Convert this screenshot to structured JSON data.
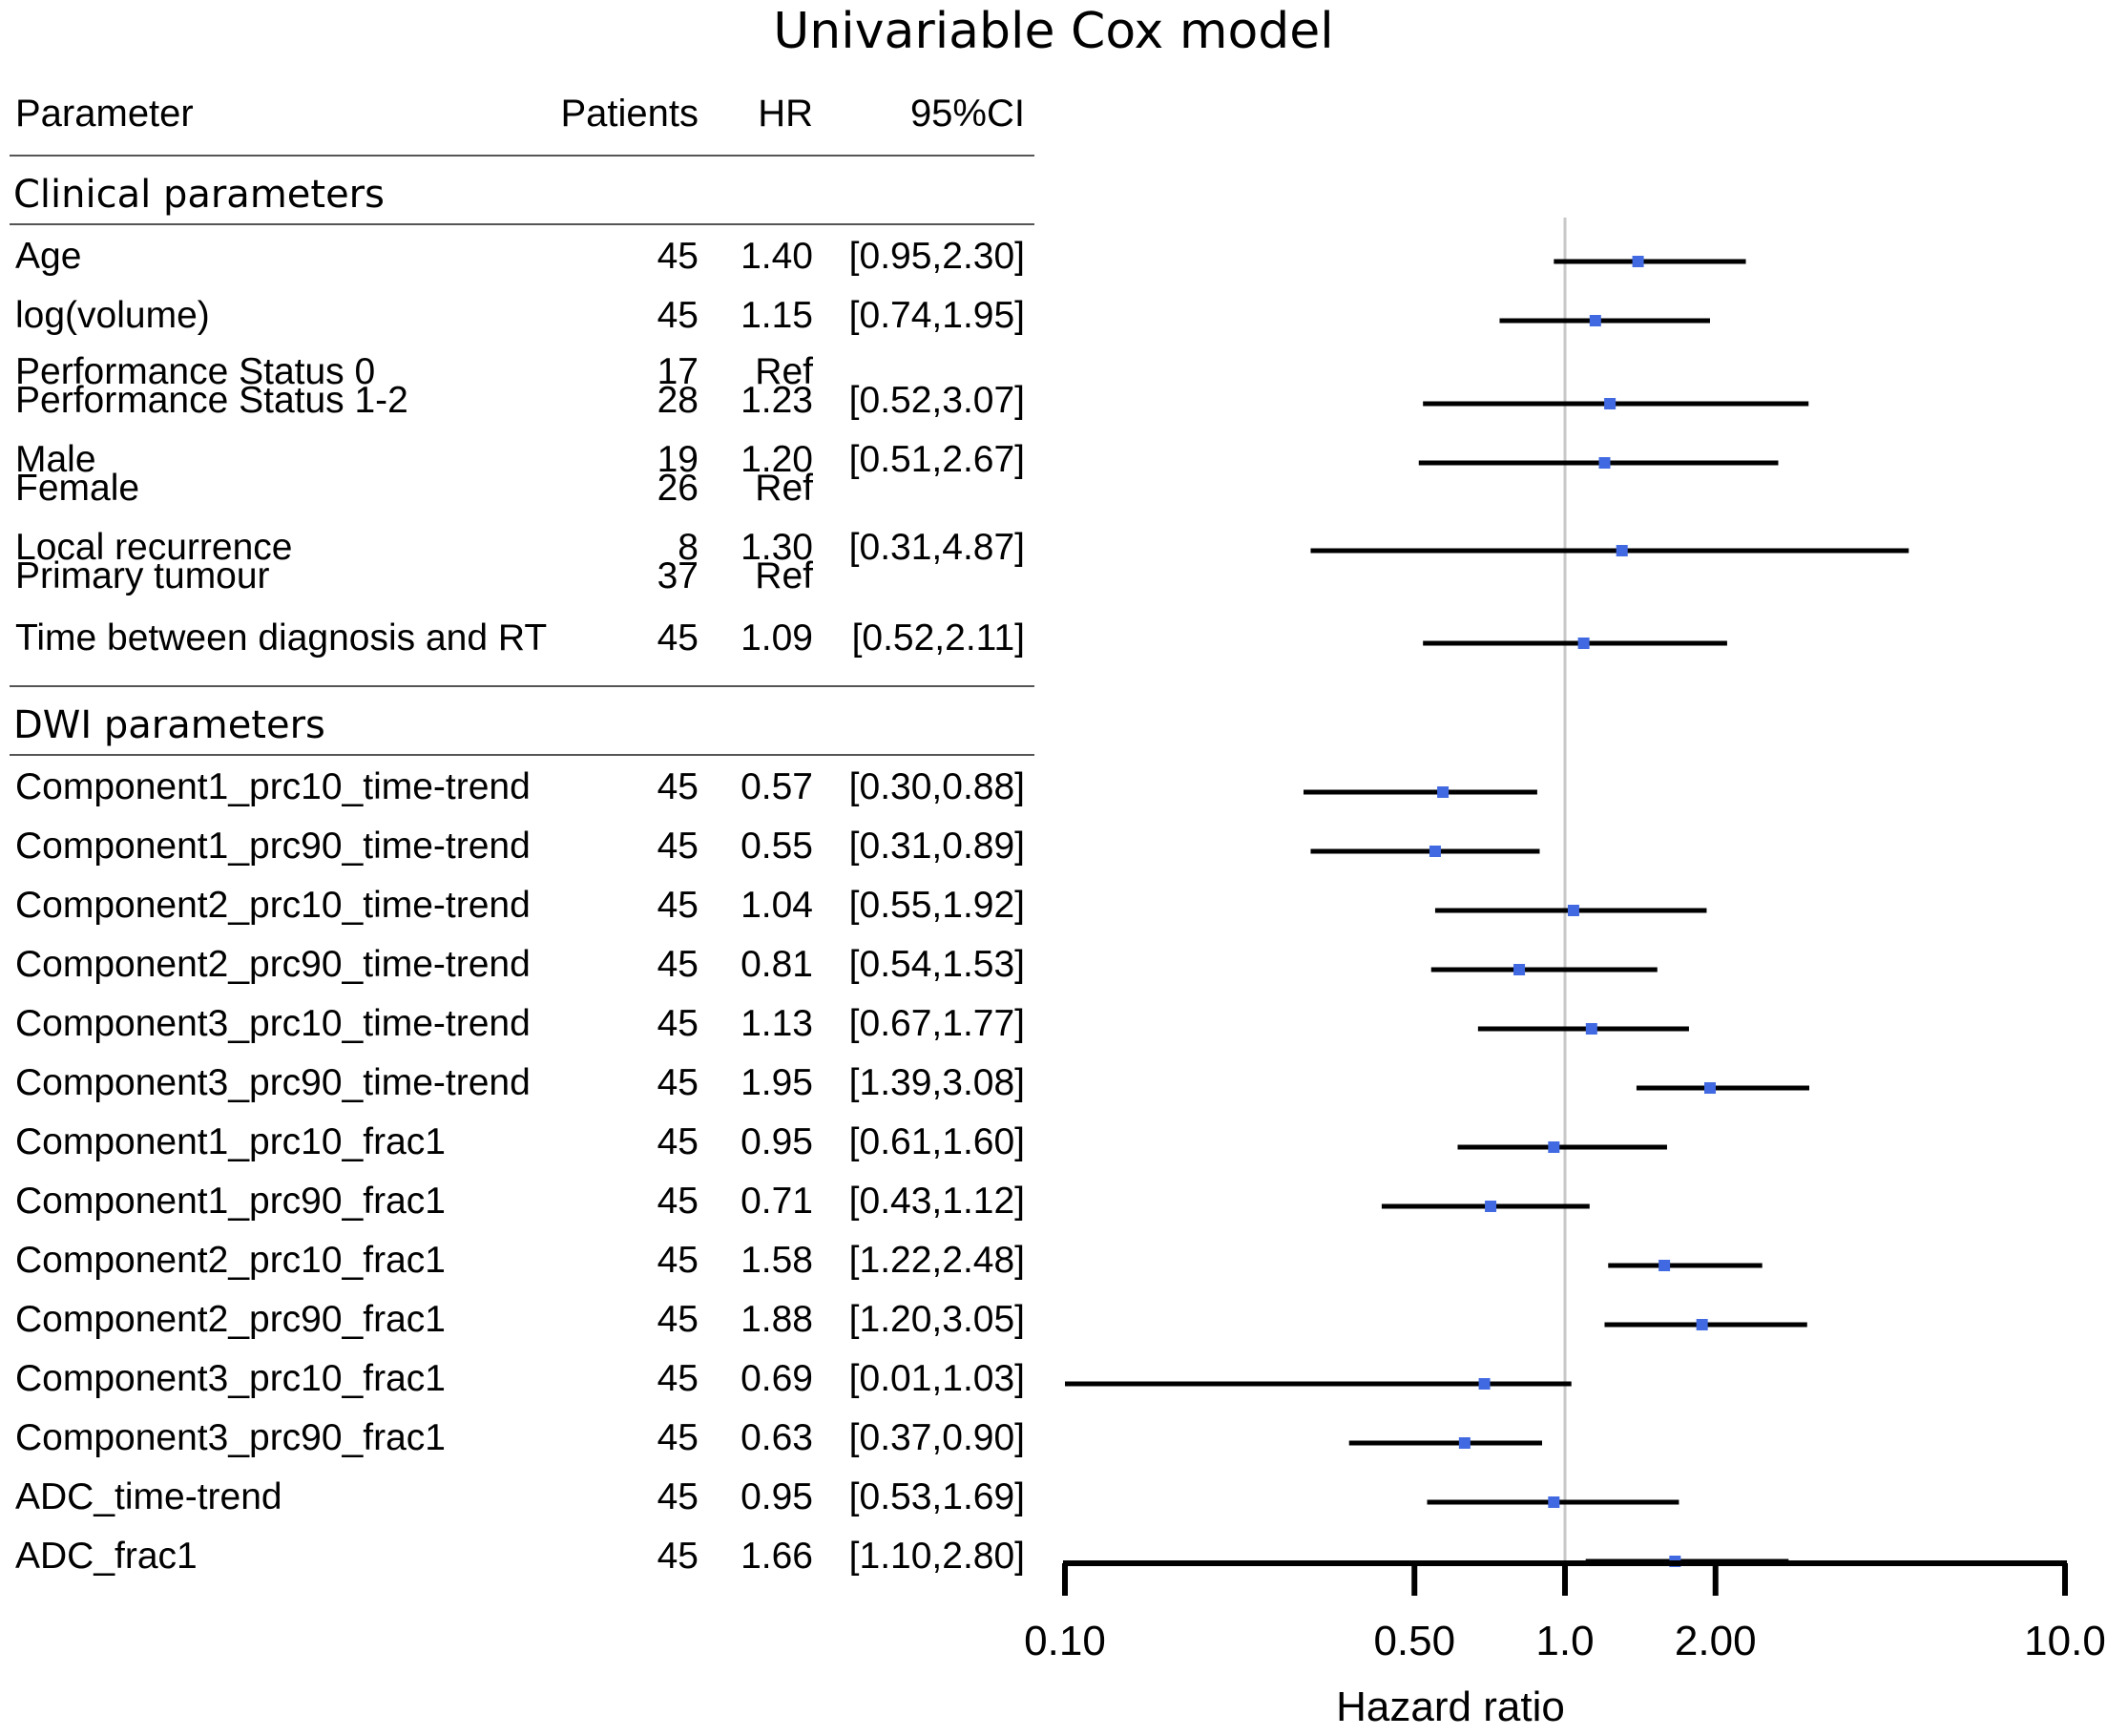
{
  "chart_data": {
    "type": "forest",
    "title": "Univariable Cox model",
    "columns": [
      "Parameter",
      "Patients",
      "HR",
      "95%CI"
    ],
    "xlabel": "Hazard ratio",
    "xscale": "log",
    "xlim": [
      0.1,
      10.0
    ],
    "xticks": [
      "0.10",
      "0.50",
      "1.0",
      "2.00",
      "10.0"
    ],
    "xtick_values": [
      0.1,
      0.5,
      1.0,
      2.0,
      10.0
    ],
    "reference_line": 1.0,
    "colors": {
      "point": "#4169E1",
      "line": "#000000",
      "reference": "#c8c8c8"
    },
    "sections": [
      {
        "label": "Clinical parameters",
        "groups": [
          {
            "rows": [
              {
                "name": "Age",
                "patients": "45",
                "hr": "1.40",
                "ci": "[0.95,2.30]"
              }
            ],
            "estimate": 1.4,
            "ci_low": 0.95,
            "ci_high": 2.3
          },
          {
            "rows": [
              {
                "name": "log(volume)",
                "patients": "45",
                "hr": "1.15",
                "ci": "[0.74,1.95]"
              }
            ],
            "estimate": 1.15,
            "ci_low": 0.74,
            "ci_high": 1.95
          },
          {
            "rows": [
              {
                "name": "Performance Status 0",
                "patients": "17",
                "hr": "Ref",
                "ci": ""
              },
              {
                "name": "Performance Status 1-2",
                "patients": "28",
                "hr": "1.23",
                "ci": "[0.52,3.07]"
              }
            ],
            "estimate": 1.23,
            "ci_low": 0.52,
            "ci_high": 3.07
          },
          {
            "rows": [
              {
                "name": "Male",
                "patients": "19",
                "hr": "1.20",
                "ci": "[0.51,2.67]"
              },
              {
                "name": "Female",
                "patients": "26",
                "hr": "Ref",
                "ci": ""
              }
            ],
            "estimate": 1.2,
            "ci_low": 0.51,
            "ci_high": 2.67
          },
          {
            "rows": [
              {
                "name": "Local recurrence",
                "patients": "8",
                "hr": "1.30",
                "ci": "[0.31,4.87]"
              },
              {
                "name": "Primary tumour",
                "patients": "37",
                "hr": "Ref",
                "ci": ""
              }
            ],
            "estimate": 1.3,
            "ci_low": 0.31,
            "ci_high": 4.87
          },
          {
            "rows": [
              {
                "name": "Time between diagnosis and RT",
                "patients": "45",
                "hr": "1.09",
                "ci": "[0.52,2.11]"
              }
            ],
            "estimate": 1.09,
            "ci_low": 0.52,
            "ci_high": 2.11
          }
        ]
      },
      {
        "label": "DWI parameters",
        "groups": [
          {
            "rows": [
              {
                "name": "Component1_prc10_time-trend",
                "patients": "45",
                "hr": "0.57",
                "ci": "[0.30,0.88]"
              }
            ],
            "estimate": 0.57,
            "ci_low": 0.3,
            "ci_high": 0.88
          },
          {
            "rows": [
              {
                "name": "Component1_prc90_time-trend",
                "patients": "45",
                "hr": "0.55",
                "ci": "[0.31,0.89]"
              }
            ],
            "estimate": 0.55,
            "ci_low": 0.31,
            "ci_high": 0.89
          },
          {
            "rows": [
              {
                "name": "Component2_prc10_time-trend",
                "patients": "45",
                "hr": "1.04",
                "ci": "[0.55,1.92]"
              }
            ],
            "estimate": 1.04,
            "ci_low": 0.55,
            "ci_high": 1.92
          },
          {
            "rows": [
              {
                "name": "Component2_prc90_time-trend",
                "patients": "45",
                "hr": "0.81",
                "ci": "[0.54,1.53]"
              }
            ],
            "estimate": 0.81,
            "ci_low": 0.54,
            "ci_high": 1.53
          },
          {
            "rows": [
              {
                "name": "Component3_prc10_time-trend",
                "patients": "45",
                "hr": "1.13",
                "ci": "[0.67,1.77]"
              }
            ],
            "estimate": 1.13,
            "ci_low": 0.67,
            "ci_high": 1.77
          },
          {
            "rows": [
              {
                "name": "Component3_prc90_time-trend",
                "patients": "45",
                "hr": "1.95",
                "ci": "[1.39,3.08]"
              }
            ],
            "estimate": 1.95,
            "ci_low": 1.39,
            "ci_high": 3.08
          },
          {
            "rows": [
              {
                "name": "Component1_prc10_frac1",
                "patients": "45",
                "hr": "0.95",
                "ci": "[0.61,1.60]"
              }
            ],
            "estimate": 0.95,
            "ci_low": 0.61,
            "ci_high": 1.6
          },
          {
            "rows": [
              {
                "name": "Component1_prc90_frac1",
                "patients": "45",
                "hr": "0.71",
                "ci": "[0.43,1.12]"
              }
            ],
            "estimate": 0.71,
            "ci_low": 0.43,
            "ci_high": 1.12
          },
          {
            "rows": [
              {
                "name": "Component2_prc10_frac1",
                "patients": "45",
                "hr": "1.58",
                "ci": "[1.22,2.48]"
              }
            ],
            "estimate": 1.58,
            "ci_low": 1.22,
            "ci_high": 2.48
          },
          {
            "rows": [
              {
                "name": "Component2_prc90_frac1",
                "patients": "45",
                "hr": "1.88",
                "ci": "[1.20,3.05]"
              }
            ],
            "estimate": 1.88,
            "ci_low": 1.2,
            "ci_high": 3.05
          },
          {
            "rows": [
              {
                "name": "Component3_prc10_frac1",
                "patients": "45",
                "hr": "0.69",
                "ci": "[0.01,1.03]"
              }
            ],
            "estimate": 0.69,
            "ci_low": 0.01,
            "ci_high": 1.03
          },
          {
            "rows": [
              {
                "name": "Component3_prc90_frac1",
                "patients": "45",
                "hr": "0.63",
                "ci": "[0.37,0.90]"
              }
            ],
            "estimate": 0.63,
            "ci_low": 0.37,
            "ci_high": 0.9
          },
          {
            "rows": [
              {
                "name": "ADC_time-trend",
                "patients": "45",
                "hr": "0.95",
                "ci": "[0.53,1.69]"
              }
            ],
            "estimate": 0.95,
            "ci_low": 0.53,
            "ci_high": 1.69
          },
          {
            "rows": [
              {
                "name": "ADC_frac1",
                "patients": "45",
                "hr": "1.66",
                "ci": "[1.10,2.80]"
              }
            ],
            "estimate": 1.66,
            "ci_low": 1.1,
            "ci_high": 2.8
          }
        ]
      }
    ]
  }
}
